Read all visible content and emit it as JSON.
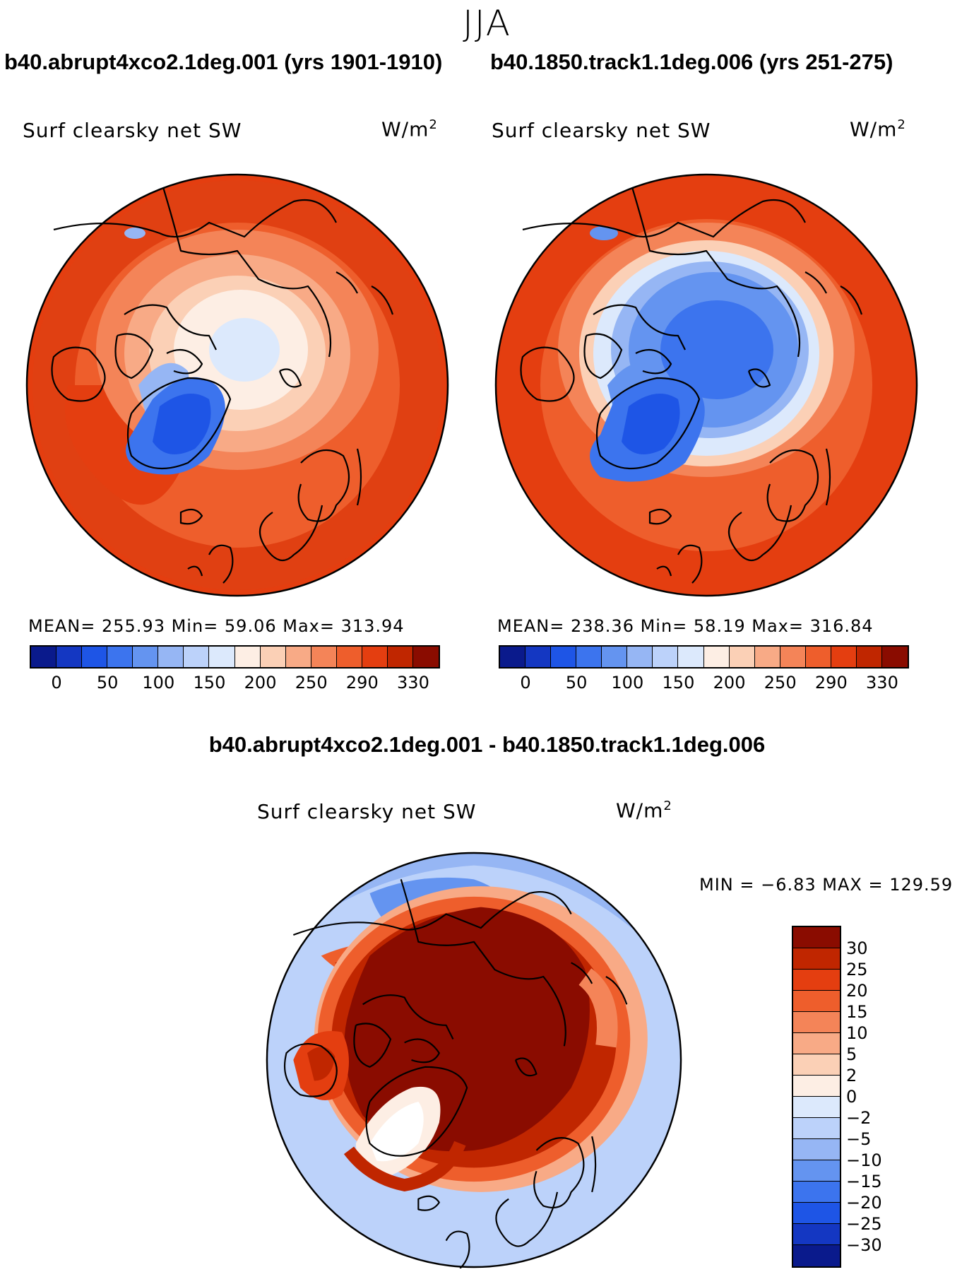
{
  "season": "JJA",
  "panels": [
    {
      "case_title": "b40.abrupt4xco2.1deg.001 (yrs 1901-1910)",
      "variable": "Surf clearsky net SW",
      "units": "W/m",
      "units_exp": "2",
      "stats_text": "MEAN= 255.93   Min=   59.06   Max= 313.94",
      "mean": 255.93,
      "min": 59.06,
      "max": 313.94
    },
    {
      "case_title": "b40.1850.track1.1deg.006 (yrs 251-275)",
      "variable": "Surf clearsky net SW",
      "units": "W/m",
      "units_exp": "2",
      "stats_text": "MEAN= 238.36   Min=   58.19   Max= 316.84",
      "mean": 238.36,
      "min": 58.19,
      "max": 316.84
    }
  ],
  "colorbar": {
    "colors": [
      "#0a1a8c",
      "#1437c2",
      "#1e55e6",
      "#3c74ee",
      "#6494f0",
      "#96b6f4",
      "#bcd2fa",
      "#dce9fc",
      "#fdeee4",
      "#fbd0b6",
      "#f8aa86",
      "#f48458",
      "#ee5e2c",
      "#e43e10",
      "#c02600",
      "#8a0c00"
    ],
    "labels": [
      "0",
      "50",
      "100",
      "150",
      "200",
      "250",
      "290",
      "330"
    ]
  },
  "diff": {
    "title": "b40.abrupt4xco2.1deg.001 - b40.1850.track1.1deg.006",
    "variable": "Surf clearsky net SW",
    "units": "W/m",
    "units_exp": "2",
    "stats_text": "MIN =   −6.83 MAX = 129.59",
    "min": -6.83,
    "max": 129.59,
    "colorbar": {
      "colors": [
        "#8a0c00",
        "#c02600",
        "#e43e10",
        "#ee5e2c",
        "#f48458",
        "#f8aa86",
        "#fbd0b6",
        "#fdeee4",
        "#dce9fc",
        "#bcd2fa",
        "#96b6f4",
        "#6494f0",
        "#3c74ee",
        "#1e55e6",
        "#1437c2",
        "#0a1a8c"
      ],
      "labels": [
        "30",
        "25",
        "20",
        "15",
        "10",
        "5",
        "2",
        "0",
        "−2",
        "−5",
        "−10",
        "−15",
        "−20",
        "−25",
        "−30"
      ]
    }
  }
}
